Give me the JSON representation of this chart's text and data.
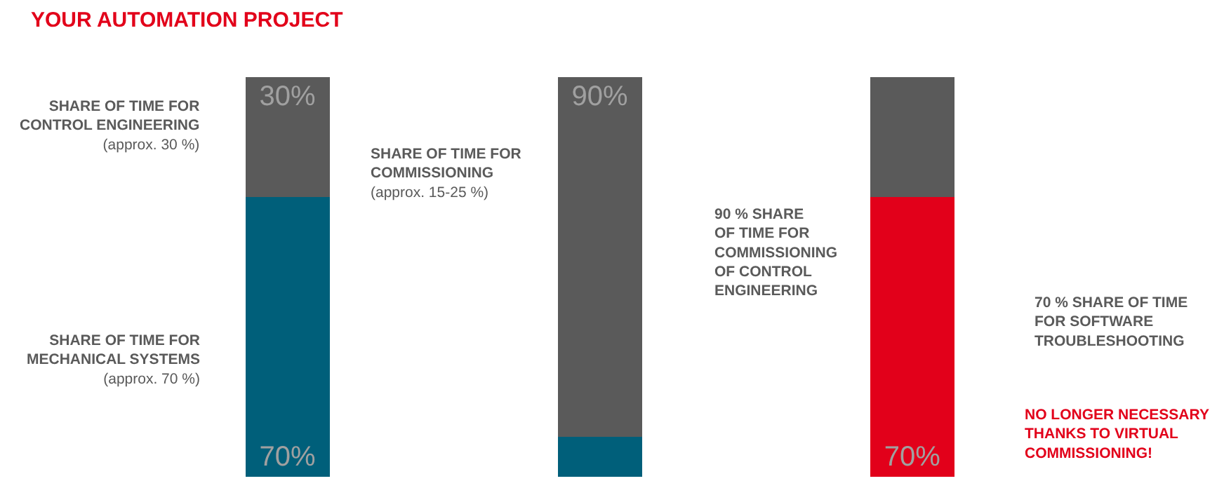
{
  "chart_data": {
    "type": "bar",
    "stacked": true,
    "tick_labels": false,
    "title": "YOUR AUTOMATION PROJECT",
    "categories": [
      null,
      null,
      null
    ],
    "series": [
      {
        "colors": [
          "#005f7a",
          "#005f7a",
          "#e2001a"
        ],
        "values": [
          70,
          10,
          70
        ],
        "value_labels": [
          "70%",
          null,
          "70%"
        ]
      },
      {
        "color": "#5a5a5a",
        "values": [
          30,
          90,
          30
        ],
        "value_labels": [
          "30%",
          "90%",
          null
        ]
      }
    ],
    "annotations": [
      "SHARE OF TIME FOR\nCONTROL ENGINEERING\n(approx. 30 %)",
      "SHARE OF TIME FOR\nCOMMISSIONING\n(approx. 15-25 %)",
      "SHARE OF TIME FOR\nMECHANICAL SYSTEMS\n(approx. 70 %)",
      "90 % SHARE\nOF TIME FOR\nCOMMISSIONING\nOF CONTROL\nENGINEERING",
      "70 % SHARE OF TIME\nFOR SOFTWARE\nTROUBLESHOOTING",
      "NO LONGER NECESSARY\nTHANKS TO VIRTUAL\nCOMMISSIONING!"
    ]
  }
}
